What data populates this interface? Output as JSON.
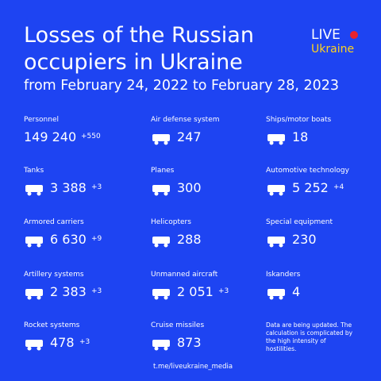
{
  "header": {
    "title": "Losses of the Russian occupiers in Ukraine",
    "subtitle": "from February 24, 2022 to February 28, 2023",
    "logo_top": "LIVE",
    "logo_bottom": "Ukraine"
  },
  "columns": [
    [
      {
        "label": "Personnel",
        "value": "149 240",
        "delta": "+550"
      },
      {
        "label": "Tanks",
        "value": "3 388",
        "delta": "+3"
      },
      {
        "label": "Armored carriers",
        "value": "6 630",
        "delta": "+9"
      },
      {
        "label": "Artillery systems",
        "value": "2 383",
        "delta": "+3"
      },
      {
        "label": "Rocket systems",
        "value": "478",
        "delta": "+3"
      }
    ],
    [
      {
        "label": "Air defense system",
        "value": "247"
      },
      {
        "label": "Planes",
        "value": "300"
      },
      {
        "label": "Helicopters",
        "value": "288"
      },
      {
        "label": "Unmanned aircraft",
        "value": "2 051",
        "delta": "+3"
      },
      {
        "label": "Cruise missiles",
        "value": "873"
      }
    ],
    [
      {
        "label": "Ships/motor boats",
        "value": "18"
      },
      {
        "label": "Automotive technology",
        "value": "5 252",
        "delta": "+4"
      },
      {
        "label": "Special equipment",
        "value": "230"
      },
      {
        "label": "Iskanders",
        "value": "4"
      }
    ]
  ],
  "note": "Data are being updated. The calculation is complicated by the high intensity of hostilities.",
  "footer": "t.me/liveukraine_media"
}
